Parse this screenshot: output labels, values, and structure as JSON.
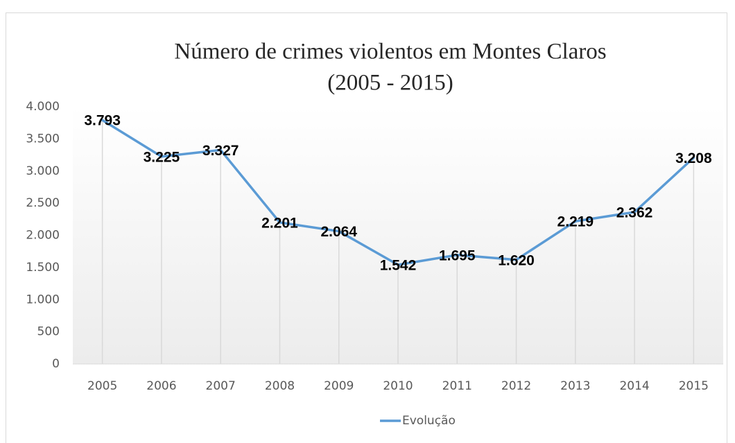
{
  "chart_data": {
    "type": "line",
    "title": [
      "Número de crimes violentos em Montes Claros",
      "(2005 - 2015)"
    ],
    "categories": [
      "2005",
      "2006",
      "2007",
      "2008",
      "2009",
      "2010",
      "2011",
      "2012",
      "2013",
      "2014",
      "2015"
    ],
    "series": [
      {
        "name": "Evolução",
        "color": "#5b9bd5",
        "values": [
          3793,
          3225,
          3327,
          2201,
          2064,
          1542,
          1695,
          1620,
          2219,
          2362,
          3208
        ],
        "value_labels": [
          "3.793",
          "3.225",
          "3.327",
          "2.201",
          "2.064",
          "1.542",
          "1.695",
          "1.620",
          "2.219",
          "2.362",
          "3.208"
        ]
      }
    ],
    "ylim": [
      0,
      4000
    ],
    "yticks": [
      0,
      500,
      {
        "value": 1000,
        "label": "1.000"
      },
      {
        "value": 1500,
        "label": "1.500"
      },
      {
        "value": 2000,
        "label": "2.000"
      },
      {
        "value": 2500,
        "label": "2.500"
      },
      {
        "value": 3000,
        "label": "3.000"
      },
      {
        "value": 3500,
        "label": "3.500"
      },
      {
        "value": 4000,
        "label": "4.000"
      }
    ],
    "drop_lines": true,
    "legend": "bottom"
  }
}
